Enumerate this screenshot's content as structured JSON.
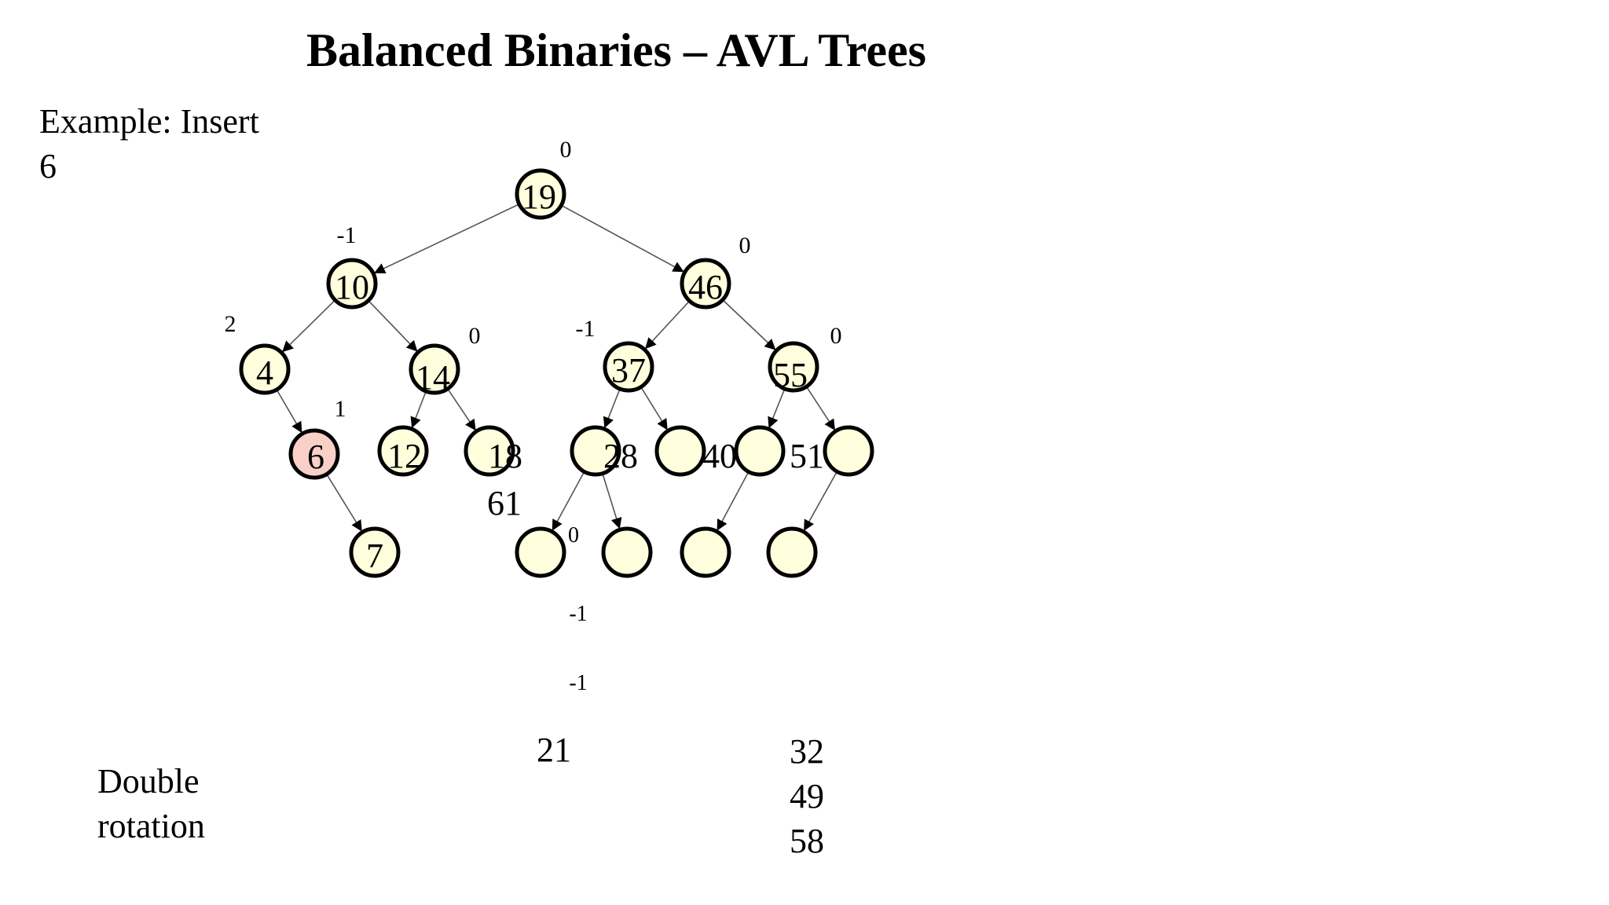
{
  "slide": {
    "title": "Balanced Binaries – AVL Trees",
    "caption_line1": "Example: Insert",
    "caption_line2": "6",
    "rotation_line1": "Double",
    "rotation_line2": "rotation",
    "loose_labels": [
      "61",
      "21"
    ],
    "extra_values": [
      "32",
      "49",
      "58"
    ]
  },
  "colors": {
    "node_fill": "#ffffdd",
    "inserted_fill": "#f9d0c8",
    "stroke": "#000000",
    "edge": "#555555"
  },
  "tree": {
    "nodes": [
      {
        "id": "n19",
        "label": "19"
      },
      {
        "id": "n10",
        "label": "10"
      },
      {
        "id": "n46",
        "label": "46"
      },
      {
        "id": "n4",
        "label": "4"
      },
      {
        "id": "n14",
        "label": "14"
      },
      {
        "id": "n37",
        "label": "37"
      },
      {
        "id": "n55",
        "label": "55"
      },
      {
        "id": "n6",
        "label": "6",
        "inserted": true
      },
      {
        "id": "n12",
        "label": "12"
      },
      {
        "id": "n18",
        "label": "18"
      },
      {
        "id": "n28",
        "label": "28"
      },
      {
        "id": "n40",
        "label": "40"
      },
      {
        "id": "n51",
        "label": "51"
      },
      {
        "id": "n61",
        "label": ""
      },
      {
        "id": "n7",
        "label": "7"
      },
      {
        "id": "e1",
        "label": ""
      },
      {
        "id": "e2",
        "label": ""
      },
      {
        "id": "e3",
        "label": ""
      },
      {
        "id": "e4",
        "label": ""
      }
    ],
    "edges": [
      [
        "n19",
        "n10"
      ],
      [
        "n19",
        "n46"
      ],
      [
        "n10",
        "n4"
      ],
      [
        "n10",
        "n14"
      ],
      [
        "n46",
        "n37"
      ],
      [
        "n46",
        "n55"
      ],
      [
        "n4",
        "n6"
      ],
      [
        "n14",
        "n12"
      ],
      [
        "n14",
        "n18"
      ],
      [
        "n37",
        "n28"
      ],
      [
        "n37",
        "n40"
      ],
      [
        "n55",
        "n51"
      ],
      [
        "n55",
        "n61"
      ],
      [
        "n6",
        "n7"
      ],
      [
        "n28",
        "e1"
      ],
      [
        "n28",
        "e2"
      ],
      [
        "n51",
        "e3"
      ],
      [
        "n61",
        "e4"
      ]
    ],
    "balance_factors": [
      {
        "id": "bf19",
        "value": "0"
      },
      {
        "id": "bf10",
        "value": "-1"
      },
      {
        "id": "bf46",
        "value": "0"
      },
      {
        "id": "bf4",
        "value": "2"
      },
      {
        "id": "bf14",
        "value": "0"
      },
      {
        "id": "bf37",
        "value": "-1"
      },
      {
        "id": "bf55",
        "value": "0"
      },
      {
        "id": "bf6",
        "value": "1"
      },
      {
        "id": "bfe1",
        "value": "0"
      },
      {
        "id": "bfa",
        "value": "-1"
      },
      {
        "id": "bfb",
        "value": "-1"
      }
    ]
  }
}
